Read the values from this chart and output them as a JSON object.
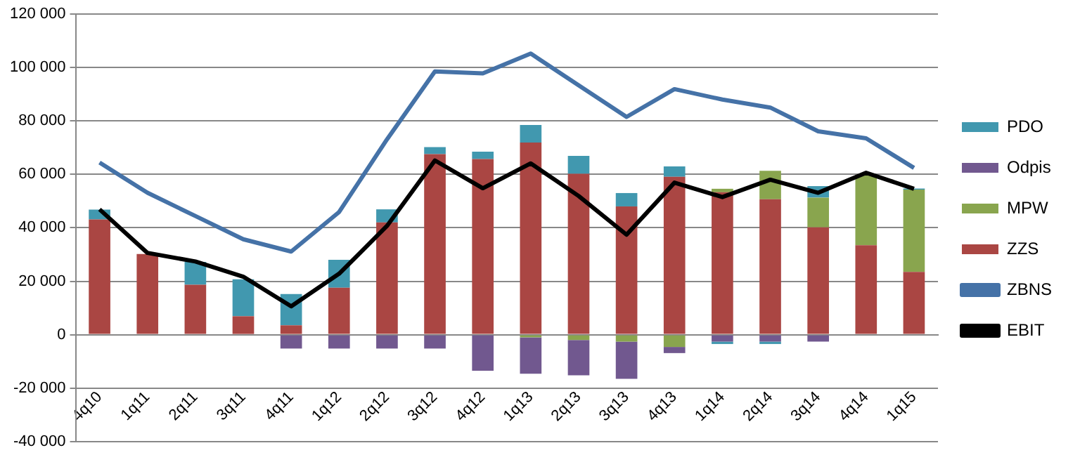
{
  "chart_data": {
    "type": "bar",
    "stacked": true,
    "categories": [
      "4q10",
      "1q11",
      "2q11",
      "3q11",
      "4q11",
      "1q12",
      "2q12",
      "3q12",
      "4q12",
      "1q13",
      "2q13",
      "3q13",
      "4q13",
      "1q14",
      "2q14",
      "3q14",
      "4q14",
      "1q15"
    ],
    "series": [
      {
        "name": "ZZS",
        "color": "#aa4643",
        "values": [
          43100,
          30200,
          18700,
          6900,
          3500,
          17600,
          42000,
          67600,
          65700,
          71900,
          60200,
          48000,
          59100,
          53300,
          50700,
          40200,
          33500,
          23500
        ]
      },
      {
        "name": "MPW",
        "color": "#89a54e",
        "values": [
          null,
          null,
          null,
          null,
          null,
          null,
          null,
          null,
          null,
          -1000,
          -2000,
          -2600,
          -4600,
          1300,
          10600,
          11100,
          26300,
          30800
        ]
      },
      {
        "name": "Odpis",
        "color": "#71588f",
        "values": [
          null,
          null,
          null,
          null,
          -5200,
          -5200,
          -5200,
          -5200,
          -13500,
          -13600,
          -13200,
          -13900,
          -2300,
          -2600,
          -2600,
          -2600,
          null,
          null
        ]
      },
      {
        "name": "PDO",
        "color": "#4198af",
        "values": [
          3700,
          null,
          8500,
          13800,
          11700,
          10400,
          4900,
          2600,
          2800,
          6600,
          6700,
          5000,
          3900,
          -900,
          -900,
          4300,
          null,
          400
        ]
      },
      {
        "name": "ZBNS",
        "type": "line",
        "color": "#4572a7",
        "values": [
          64400,
          53100,
          44400,
          35700,
          31100,
          45900,
          73100,
          98500,
          97800,
          105200,
          93300,
          81500,
          91900,
          88000,
          85000,
          76100,
          73500,
          62400
        ]
      },
      {
        "name": "EBIT",
        "type": "line",
        "color": "#000000",
        "values": [
          46900,
          30600,
          27400,
          21700,
          10600,
          22800,
          40700,
          65200,
          54800,
          64100,
          51900,
          37400,
          56900,
          51500,
          58000,
          53100,
          60600,
          54600
        ]
      }
    ],
    "ylim": [
      -40000,
      120000
    ],
    "yticks": [
      {
        "value": -40000,
        "label": "-40 000"
      },
      {
        "value": -20000,
        "label": "-20 000"
      },
      {
        "value": 0,
        "label": "0"
      },
      {
        "value": 20000,
        "label": "20 000"
      },
      {
        "value": 40000,
        "label": "40 000"
      },
      {
        "value": 60000,
        "label": "60 000"
      },
      {
        "value": 80000,
        "label": "80 000"
      },
      {
        "value": 100000,
        "label": "100 000"
      },
      {
        "value": 120000,
        "label": "120 000"
      }
    ],
    "grid": "y",
    "legend": "right",
    "marker": "none",
    "line_style": "solid"
  }
}
